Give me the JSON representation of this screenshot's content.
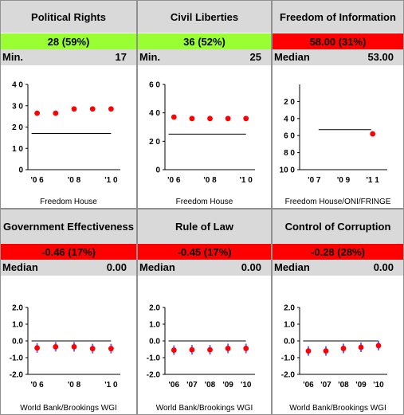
{
  "panels": [
    {
      "title": "Political Rights",
      "score": "28 (59%)",
      "score_color": "#99ff33",
      "ref_label": "Min.",
      "ref_value": "17",
      "source": "Freedom House",
      "chart_data": {
        "type": "scatter",
        "x_ticks": [
          "'0 6",
          "'0 8",
          "'1 0"
        ],
        "y_ticks": [
          "0",
          "1 0",
          "2 0",
          "3 0",
          "4 0"
        ],
        "ylim": [
          0,
          40
        ],
        "points": [
          {
            "x": 2006,
            "y": 26.5
          },
          {
            "x": 2007,
            "y": 26.5
          },
          {
            "x": 2008,
            "y": 28.5
          },
          {
            "x": 2009,
            "y": 28.5
          },
          {
            "x": 2010,
            "y": 28.5
          }
        ],
        "reference_line": 17
      }
    },
    {
      "title": "Civil Liberties",
      "score": "36 (52%)",
      "score_color": "#99ff33",
      "ref_label": "Min.",
      "ref_value": "25",
      "source": "Freedom House",
      "chart_data": {
        "type": "scatter",
        "x_ticks": [
          "'0 6",
          "'0 8",
          "'1 0"
        ],
        "y_ticks": [
          "0",
          "2 0",
          "4 0",
          "6 0"
        ],
        "ylim": [
          0,
          60
        ],
        "points": [
          {
            "x": 2006,
            "y": 37
          },
          {
            "x": 2007,
            "y": 36
          },
          {
            "x": 2008,
            "y": 36
          },
          {
            "x": 2009,
            "y": 36
          },
          {
            "x": 2010,
            "y": 36
          }
        ],
        "reference_line": 25
      }
    },
    {
      "title": "Freedom of Information",
      "score": "58.00 (31%)",
      "score_color": "#ff0000",
      "ref_label": "Median",
      "ref_value": "53.00",
      "source": "Freedom House/ONI/FRINGE",
      "chart_data": {
        "type": "scatter",
        "x_ticks": [
          "'0 7",
          "'0 9",
          "'1 1"
        ],
        "y_ticks": [
          "2 0",
          "4 0",
          "6 0",
          "8 0",
          "10 0"
        ],
        "ylim": [
          0,
          100
        ],
        "inverted": true,
        "points": [
          {
            "x": 2011,
            "y": 58
          }
        ],
        "reference_line": 53
      }
    },
    {
      "title": "Government Effectiveness",
      "score": "-0.46 (17%)",
      "score_color": "#ff0000",
      "ref_label": "Median",
      "ref_value": "0.00",
      "source": "World Bank/Brookings WGI",
      "chart_data": {
        "type": "scatter",
        "x_ticks": [
          "'0 6",
          "'0 8",
          "'1 0"
        ],
        "y_ticks": [
          "-2.0",
          "-1.0",
          "0.0",
          "1.0",
          "2.0"
        ],
        "ylim": [
          -2,
          2
        ],
        "points": [
          {
            "x": 2006,
            "y": -0.42
          },
          {
            "x": 2007,
            "y": -0.35
          },
          {
            "x": 2008,
            "y": -0.35
          },
          {
            "x": 2009,
            "y": -0.46
          },
          {
            "x": 2010,
            "y": -0.46
          }
        ],
        "reference_line": 0
      }
    },
    {
      "title": "Rule of Law",
      "score": "-0.45 (17%)",
      "score_color": "#ff0000",
      "ref_label": "Median",
      "ref_value": "0.00",
      "source": "World Bank/Brookings WGI",
      "chart_data": {
        "type": "scatter",
        "x_ticks": [
          "'06",
          "'07",
          "'08",
          "'09",
          "'10"
        ],
        "y_ticks": [
          "-2.0",
          "-1.0",
          "0.0",
          "1.0",
          "2.0"
        ],
        "ylim": [
          -2,
          2
        ],
        "points": [
          {
            "x": 2006,
            "y": -0.55
          },
          {
            "x": 2007,
            "y": -0.53
          },
          {
            "x": 2008,
            "y": -0.53
          },
          {
            "x": 2009,
            "y": -0.45
          },
          {
            "x": 2010,
            "y": -0.45
          }
        ],
        "reference_line": 0
      }
    },
    {
      "title": "Control of Corruption",
      "score": "-0.28 (28%)",
      "score_color": "#ff0000",
      "ref_label": "Median",
      "ref_value": "0.00",
      "source": "World Bank/Brookings WGI",
      "chart_data": {
        "type": "scatter",
        "x_ticks": [
          "'06",
          "'07",
          "'08",
          "'09",
          "'10"
        ],
        "y_ticks": [
          "-2.0",
          "-1.0",
          "0.0",
          "1.0",
          "2.0"
        ],
        "ylim": [
          -2,
          2
        ],
        "points": [
          {
            "x": 2006,
            "y": -0.6
          },
          {
            "x": 2007,
            "y": -0.6
          },
          {
            "x": 2008,
            "y": -0.45
          },
          {
            "x": 2009,
            "y": -0.38
          },
          {
            "x": 2010,
            "y": -0.28
          }
        ],
        "reference_line": 0
      }
    }
  ]
}
